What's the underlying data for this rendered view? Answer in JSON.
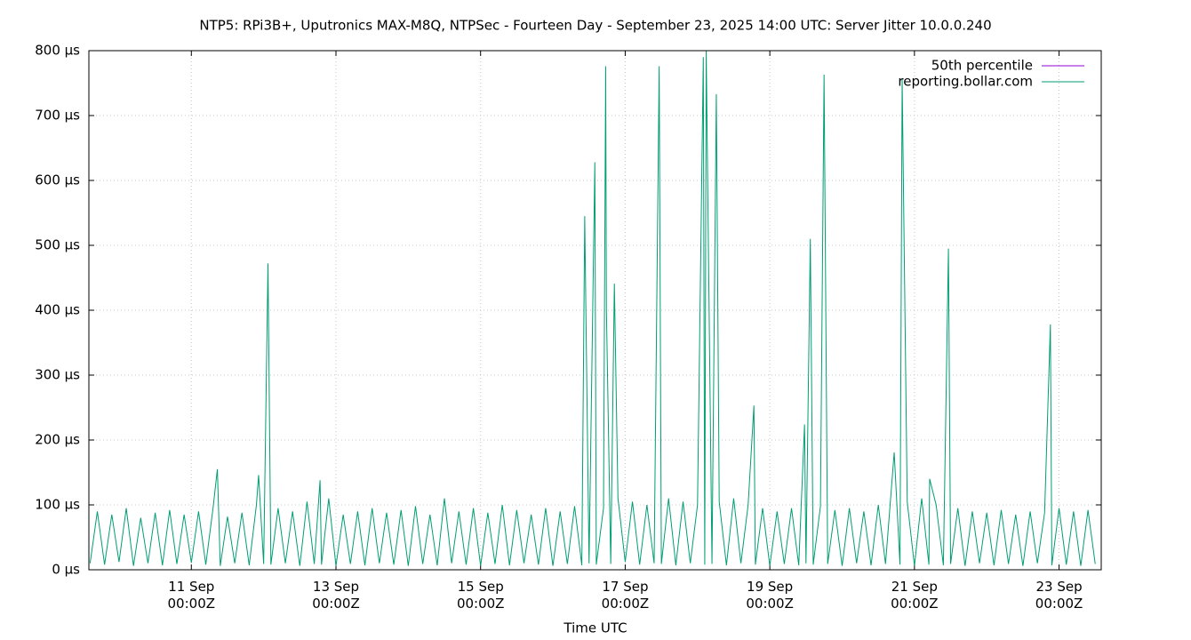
{
  "chart_data": {
    "type": "line",
    "title": "NTP5: RPi3B+, Uputronics MAX-M8Q, NTPSec - Fourteen Day - September 23, 2025 14:00 UTC: Server Jitter 10.0.0.240",
    "xlabel": "Time UTC",
    "xlim": [
      9.583,
      23.583
    ],
    "ylim": [
      0,
      800
    ],
    "xticks": [
      {
        "value": 11,
        "label": "11 Sep\n00:00Z"
      },
      {
        "value": 13,
        "label": "13 Sep\n00:00Z"
      },
      {
        "value": 15,
        "label": "15 Sep\n00:00Z"
      },
      {
        "value": 17,
        "label": "17 Sep\n00:00Z"
      },
      {
        "value": 19,
        "label": "19 Sep\n00:00Z"
      },
      {
        "value": 21,
        "label": "21 Sep\n00:00Z"
      },
      {
        "value": 23,
        "label": "23 Sep\n00:00Z"
      }
    ],
    "yticks": [
      {
        "value": 0,
        "label": "0 µs"
      },
      {
        "value": 100,
        "label": "100 µs"
      },
      {
        "value": 200,
        "label": "200 µs"
      },
      {
        "value": 300,
        "label": "300 µs"
      },
      {
        "value": 400,
        "label": "400 µs"
      },
      {
        "value": 500,
        "label": "500 µs"
      },
      {
        "value": 600,
        "label": "600 µs"
      },
      {
        "value": 700,
        "label": "700 µs"
      },
      {
        "value": 800,
        "label": "800 µs"
      }
    ],
    "grid": true,
    "legend": "top-right",
    "series": [
      {
        "name": "50th percentile",
        "color": "#9400d3",
        "x": [],
        "values": []
      },
      {
        "name": "reporting.bollar.com",
        "color": "#009e73",
        "x": [
          9.6,
          9.7,
          9.8,
          9.9,
          10.0,
          10.1,
          10.2,
          10.3,
          10.4,
          10.5,
          10.6,
          10.7,
          10.8,
          10.9,
          11.0,
          11.1,
          11.2,
          11.3,
          11.36,
          11.4,
          11.5,
          11.6,
          11.7,
          11.8,
          11.9,
          11.93,
          12.0,
          12.06,
          12.1,
          12.2,
          12.3,
          12.4,
          12.5,
          12.6,
          12.7,
          12.78,
          12.8,
          12.9,
          13.0,
          13.1,
          13.2,
          13.3,
          13.4,
          13.5,
          13.6,
          13.7,
          13.8,
          13.9,
          14.0,
          14.1,
          14.2,
          14.3,
          14.4,
          14.5,
          14.6,
          14.7,
          14.8,
          14.9,
          15.0,
          15.1,
          15.2,
          15.3,
          15.4,
          15.5,
          15.6,
          15.7,
          15.8,
          15.9,
          16.0,
          16.1,
          16.2,
          16.3,
          16.4,
          16.44,
          16.5,
          16.58,
          16.6,
          16.7,
          16.73,
          16.74,
          16.8,
          16.85,
          16.9,
          17.0,
          17.1,
          17.2,
          17.3,
          17.4,
          17.47,
          17.5,
          17.6,
          17.7,
          17.8,
          17.9,
          18.0,
          18.08,
          18.1,
          18.12,
          18.2,
          18.26,
          18.3,
          18.4,
          18.5,
          18.6,
          18.7,
          18.78,
          18.8,
          18.9,
          19.0,
          19.1,
          19.2,
          19.3,
          19.4,
          19.48,
          19.5,
          19.56,
          19.6,
          19.7,
          19.75,
          19.8,
          19.9,
          20.0,
          20.1,
          20.2,
          20.3,
          20.4,
          20.5,
          20.6,
          20.72,
          20.8,
          20.83,
          20.9,
          21.0,
          21.1,
          21.2,
          21.21,
          21.3,
          21.4,
          21.47,
          21.5,
          21.6,
          21.7,
          21.8,
          21.9,
          22.0,
          22.1,
          22.2,
          22.3,
          22.4,
          22.5,
          22.6,
          22.7,
          22.8,
          22.88,
          22.9,
          23.0,
          23.1,
          23.2,
          23.3,
          23.4,
          23.5
        ],
        "values": [
          10,
          90,
          8,
          85,
          12,
          95,
          6,
          80,
          10,
          88,
          7,
          92,
          9,
          85,
          11,
          90,
          8,
          95,
          155,
          6,
          82,
          10,
          88,
          7,
          100,
          146,
          9,
          472,
          8,
          95,
          10,
          90,
          6,
          105,
          9,
          138,
          8,
          110,
          6,
          85,
          9,
          90,
          7,
          95,
          10,
          88,
          8,
          92,
          6,
          98,
          9,
          85,
          7,
          110,
          10,
          90,
          8,
          95,
          6,
          88,
          9,
          100,
          7,
          92,
          10,
          85,
          8,
          95,
          6,
          90,
          9,
          98,
          7,
          545,
          10,
          628,
          8,
          95,
          776,
          400,
          9,
          441,
          110,
          12,
          105,
          8,
          100,
          10,
          776,
          9,
          110,
          7,
          105,
          10,
          100,
          790,
          8,
          800,
          9,
          733,
          105,
          7,
          110,
          10,
          100,
          253,
          8,
          95,
          6,
          90,
          9,
          95,
          7,
          224,
          10,
          510,
          8,
          98,
          763,
          9,
          92,
          6,
          95,
          10,
          90,
          7,
          100,
          9,
          181,
          8,
          757,
          105,
          6,
          110,
          8,
          140,
          100,
          7,
          495,
          9,
          95,
          6,
          90,
          10,
          88,
          7,
          92,
          9,
          85,
          6,
          90,
          10,
          88,
          378,
          7,
          95,
          8,
          90,
          6,
          92,
          9
        ]
      }
    ]
  }
}
